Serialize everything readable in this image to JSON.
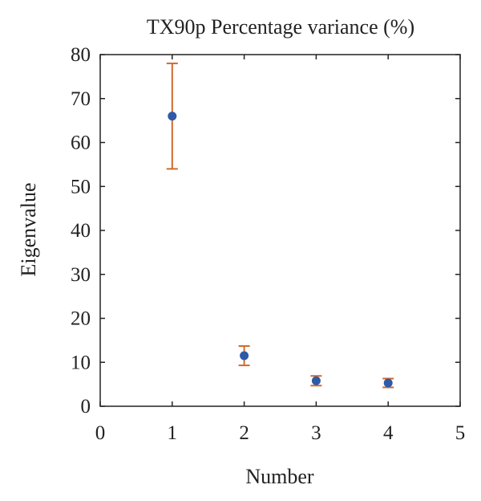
{
  "chart_data": {
    "type": "scatter",
    "title": "TX90p Percentage variance (%)",
    "xlabel": "Number",
    "ylabel": "Eigenvalue",
    "xlim": [
      0,
      5
    ],
    "ylim": [
      0,
      80
    ],
    "x_ticks": [
      "0",
      "1",
      "2",
      "3",
      "4",
      "5"
    ],
    "y_ticks": [
      "0",
      "10",
      "20",
      "30",
      "40",
      "50",
      "60",
      "70",
      "80"
    ],
    "grid": false,
    "series": [
      {
        "points": [
          {
            "x": 1,
            "y": 66,
            "err_low": 54,
            "err_high": 78
          },
          {
            "x": 2,
            "y": 11.5,
            "err_low": 9.3,
            "err_high": 13.7
          },
          {
            "x": 3,
            "y": 5.8,
            "err_low": 4.7,
            "err_high": 6.9
          },
          {
            "x": 4,
            "y": 5.3,
            "err_low": 4.3,
            "err_high": 6.3
          }
        ]
      }
    ],
    "colors": {
      "marker": "#2e5aa8",
      "error_bar": "#d4692b",
      "axis": "#222222"
    }
  }
}
